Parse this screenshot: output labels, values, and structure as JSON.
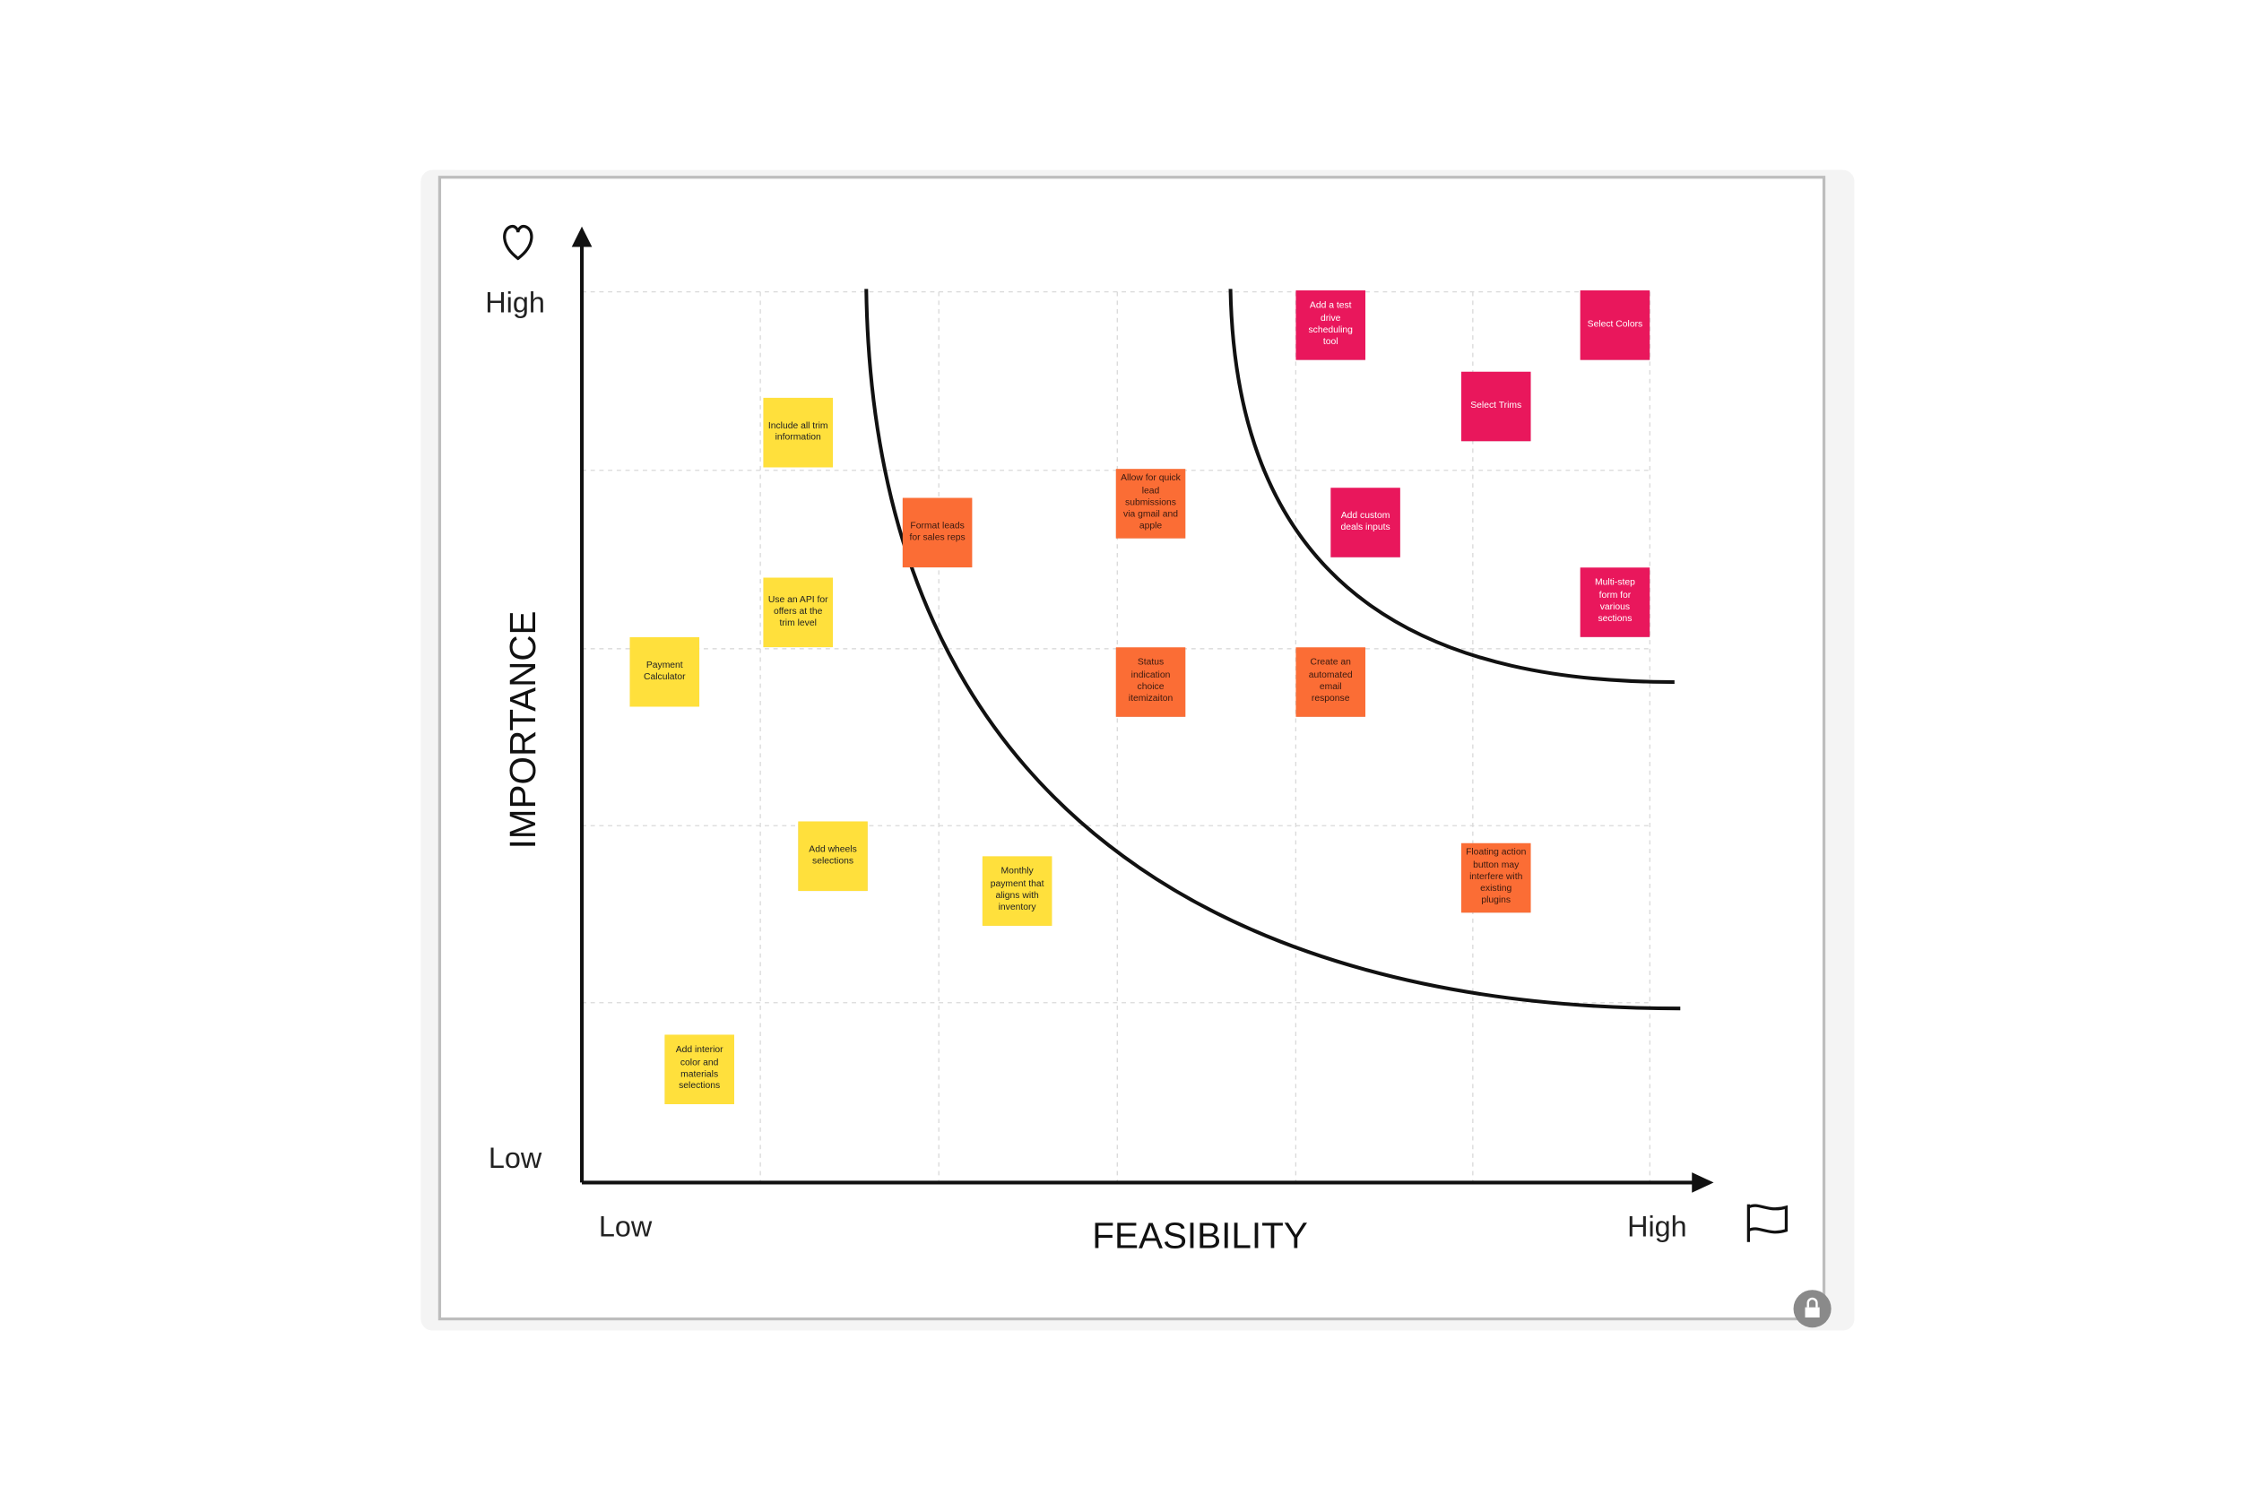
{
  "axes": {
    "y_high": "High",
    "y_low": "Low",
    "y_label": "IMPORTANCE",
    "x_low": "Low",
    "x_label": "FEASIBILITY",
    "x_high": "High"
  },
  "notes": [
    {
      "text": "Include all trim information"
    },
    {
      "text": "Use an API for offers at the trim level"
    },
    {
      "text": "Payment Calculator"
    },
    {
      "text": "Add wheels selections"
    },
    {
      "text": "Monthly payment that aligns with inventory"
    },
    {
      "text": "Add interior color and materials selections"
    },
    {
      "text": "Format leads for sales reps"
    },
    {
      "text": "Allow for quick lead submissions via gmail and apple"
    },
    {
      "text": "Status indication choice itemizaiton"
    },
    {
      "text": "Create an automated email response"
    },
    {
      "text": "Floating action button may interfere with existing plugins"
    },
    {
      "text": "Add a test drive scheduling tool"
    },
    {
      "text": "Select Colors"
    },
    {
      "text": "Select Trims"
    },
    {
      "text": "Add custom deals inputs"
    },
    {
      "text": "Multi-step form for various sections"
    }
  ]
}
